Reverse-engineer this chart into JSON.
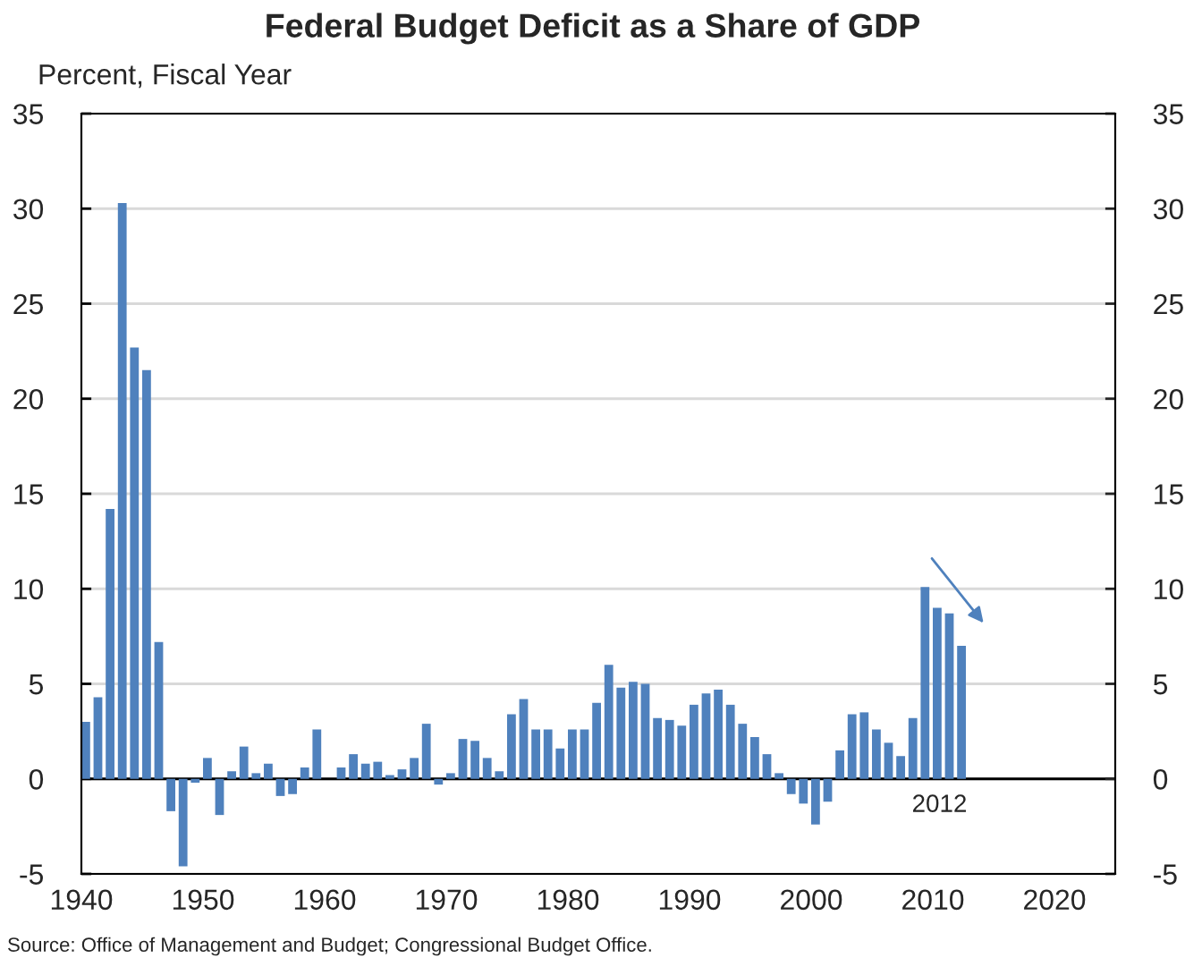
{
  "chart_data": {
    "type": "bar",
    "title": "Federal Budget Deficit as a Share of GDP",
    "ylabel": "Percent, Fiscal Year",
    "x": [
      1940,
      1941,
      1942,
      1943,
      1944,
      1945,
      1946,
      1947,
      1948,
      1949,
      1950,
      1951,
      1952,
      1953,
      1954,
      1955,
      1956,
      1957,
      1958,
      1959,
      1960,
      1961,
      1962,
      1963,
      1964,
      1965,
      1966,
      1967,
      1968,
      1969,
      1970,
      1971,
      1972,
      1973,
      1974,
      1975,
      1976,
      1977,
      1978,
      1979,
      1980,
      1981,
      1982,
      1983,
      1984,
      1985,
      1986,
      1987,
      1988,
      1989,
      1990,
      1991,
      1992,
      1993,
      1994,
      1995,
      1996,
      1997,
      1998,
      1999,
      2000,
      2001,
      2002,
      2003,
      2004,
      2005,
      2006,
      2007,
      2008,
      2009,
      2010,
      2011,
      2012
    ],
    "values": [
      3.0,
      4.3,
      14.2,
      30.3,
      22.7,
      21.5,
      7.2,
      -1.7,
      -4.6,
      -0.2,
      1.1,
      -1.9,
      0.4,
      1.7,
      0.3,
      0.8,
      -0.9,
      -0.8,
      0.6,
      2.6,
      0.0,
      0.6,
      1.3,
      0.8,
      0.9,
      0.2,
      0.5,
      1.1,
      2.9,
      -0.3,
      0.3,
      2.1,
      2.0,
      1.1,
      0.4,
      3.4,
      4.2,
      2.6,
      2.6,
      1.6,
      2.6,
      2.6,
      4.0,
      6.0,
      4.8,
      5.1,
      5.0,
      3.2,
      3.1,
      2.8,
      3.9,
      4.5,
      4.7,
      3.9,
      2.9,
      2.2,
      1.3,
      0.3,
      -0.8,
      -1.3,
      -2.4,
      -1.2,
      1.5,
      3.4,
      3.5,
      2.6,
      1.9,
      1.2,
      3.2,
      10.1,
      9.0,
      8.7,
      7.0
    ],
    "color": "#4f81bd",
    "xlim": [
      1940,
      2025
    ],
    "xticks": [
      1940,
      1950,
      1960,
      1970,
      1980,
      1990,
      2000,
      2010,
      2020
    ],
    "ylim": [
      -5,
      35
    ],
    "yticks": [
      {
        "value": -5,
        "label": "-5"
      },
      0,
      5,
      10,
      15,
      20,
      25,
      30,
      35
    ],
    "y2lim": [
      -5,
      35
    ],
    "y2ticks": [
      {
        "value": -5,
        "label": "-5"
      },
      0,
      5,
      10,
      15,
      20,
      25,
      30,
      35
    ],
    "grid": "y",
    "ref_lines": [
      {
        "axis": "y",
        "value": 0,
        "color": "#000000"
      }
    ],
    "annotations": [
      "2012",
      "Source: Office of Management and Budget; Congressional Budget Office."
    ]
  }
}
